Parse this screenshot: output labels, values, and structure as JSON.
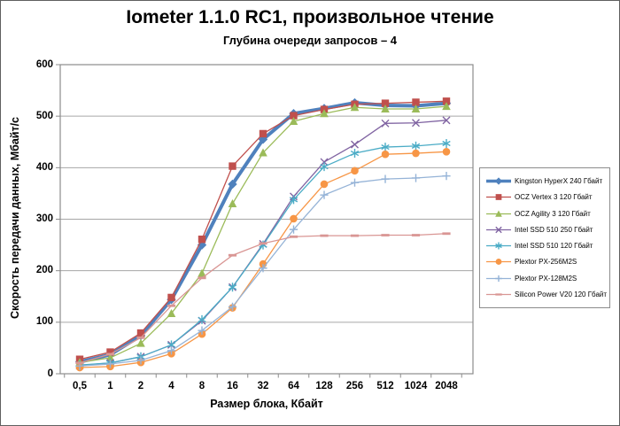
{
  "chart_data": {
    "type": "line",
    "title": "Iometer 1.1.0 RC1, произвольное чтение",
    "subtitle": "Глубина очереди запросов – 4",
    "xlabel": "Размер блока, Кбайт",
    "ylabel": "Скорость передачи данных, Мбайт/с",
    "categories": [
      "0,5",
      "1",
      "2",
      "4",
      "8",
      "16",
      "32",
      "64",
      "128",
      "256",
      "512",
      "1024",
      "2048"
    ],
    "y_ticks": [
      0,
      100,
      200,
      300,
      400,
      500,
      600
    ],
    "ylim": [
      0,
      600
    ],
    "grid": true,
    "legend_position": "right",
    "series": [
      {
        "name": "Kingston HyperX  240 Гбайт",
        "color": "#4F81BD",
        "marker": "diamond",
        "line_width": 4,
        "values": [
          23,
          37,
          74,
          144,
          250,
          368,
          455,
          505,
          515,
          526,
          521,
          520,
          525
        ]
      },
      {
        "name": "OCZ Vertex  3 120 Гбайт",
        "color": "#C0504D",
        "marker": "square",
        "line_width": 1.3,
        "values": [
          28,
          42,
          79,
          148,
          261,
          403,
          466,
          501,
          513,
          523,
          525,
          527,
          529
        ]
      },
      {
        "name": "OCZ Agility  3 120 Гбайт",
        "color": "#9BBB59",
        "marker": "triangle",
        "line_width": 1.3,
        "values": [
          22,
          31,
          59,
          117,
          195,
          330,
          429,
          490,
          505,
          517,
          514,
          514,
          519
        ]
      },
      {
        "name": "Intel  SSD 510 250 Гбайт",
        "color": "#8064A2",
        "marker": "x",
        "line_width": 1.3,
        "values": [
          16,
          21,
          33,
          56,
          103,
          168,
          252,
          344,
          411,
          445,
          486,
          487,
          492
        ]
      },
      {
        "name": "Intel  SSD 510 120 Гбайт",
        "color": "#4BACC6",
        "marker": "asterisk",
        "line_width": 1.3,
        "values": [
          17,
          21,
          33,
          56,
          105,
          168,
          250,
          338,
          402,
          428,
          440,
          442,
          447
        ]
      },
      {
        "name": "Plextor PX-256M2S",
        "color": "#F79646",
        "marker": "circle",
        "line_width": 1.3,
        "values": [
          12,
          14,
          22,
          39,
          77,
          128,
          213,
          301,
          368,
          394,
          426,
          428,
          431
        ]
      },
      {
        "name": "Plextor PX-128M2S",
        "color": "#95B3D7",
        "marker": "plus",
        "line_width": 1.3,
        "values": [
          15,
          19,
          26,
          45,
          84,
          130,
          205,
          280,
          347,
          371,
          378,
          380,
          384
        ]
      },
      {
        "name": "Silicon Power  V20 120 Гбайт",
        "color": "#D99694",
        "marker": "dash",
        "line_width": 1.3,
        "values": [
          21,
          38,
          70,
          132,
          186,
          230,
          253,
          266,
          268,
          268,
          269,
          269,
          272
        ]
      }
    ]
  },
  "colors": {
    "gridline": "#A6A6A6",
    "plot_border": "#8C8C8C",
    "tick": "#8C8C8C",
    "outer_border": "#5F5F5F",
    "background": "#FFFFFF",
    "text": "#000000"
  }
}
